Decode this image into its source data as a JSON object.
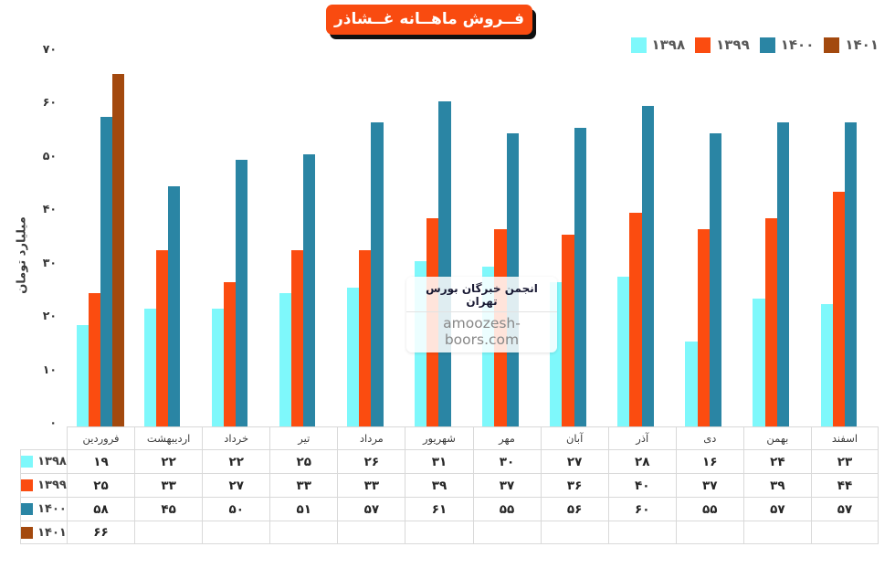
{
  "title": "فــروش ماهــانه غــشاذر",
  "watermark": {
    "line1": "انجمن خبرگان بورس تهران",
    "line2": "amoozesh-boors.com"
  },
  "y_axis": {
    "label": "میلیارد تومان",
    "ticks": [
      {
        "value": 70,
        "label": "۷۰"
      },
      {
        "value": 60,
        "label": "۶۰"
      },
      {
        "value": 50,
        "label": "۵۰"
      },
      {
        "value": 40,
        "label": "۴۰"
      },
      {
        "value": 30,
        "label": "۳۰"
      },
      {
        "value": 20,
        "label": "۲۰"
      },
      {
        "value": 10,
        "label": "۱۰"
      },
      {
        "value": 0,
        "label": "۰"
      }
    ]
  },
  "months": [
    "فروردین",
    "اردیبهشت",
    "خرداد",
    "تیر",
    "مرداد",
    "شهریور",
    "مهر",
    "آبان",
    "آذر",
    "دی",
    "بهمن",
    "اسفند"
  ],
  "series": [
    {
      "name": "۱۳۹۸",
      "color": "#7ef8fb",
      "values": [
        19,
        22,
        22,
        25,
        26,
        31,
        30,
        27,
        28,
        16,
        24,
        23
      ],
      "labels": [
        "۱۹",
        "۲۲",
        "۲۲",
        "۲۵",
        "۲۶",
        "۳۱",
        "۳۰",
        "۲۷",
        "۲۸",
        "۱۶",
        "۲۴",
        "۲۳"
      ]
    },
    {
      "name": "۱۳۹۹",
      "color": "#fb4c10",
      "values": [
        25,
        33,
        27,
        33,
        33,
        39,
        37,
        36,
        40,
        37,
        39,
        44
      ],
      "labels": [
        "۲۵",
        "۳۳",
        "۲۷",
        "۳۳",
        "۳۳",
        "۳۹",
        "۳۷",
        "۳۶",
        "۴۰",
        "۳۷",
        "۳۹",
        "۴۴"
      ]
    },
    {
      "name": "۱۴۰۰",
      "color": "#2a85a4",
      "values": [
        58,
        45,
        50,
        51,
        57,
        61,
        55,
        56,
        60,
        55,
        57,
        57
      ],
      "labels": [
        "۵۸",
        "۴۵",
        "۵۰",
        "۵۱",
        "۵۷",
        "۶۱",
        "۵۵",
        "۵۶",
        "۶۰",
        "۵۵",
        "۵۷",
        "۵۷"
      ]
    },
    {
      "name": "۱۴۰۱",
      "color": "#a3490e",
      "values": [
        66,
        null,
        null,
        null,
        null,
        null,
        null,
        null,
        null,
        null,
        null,
        null
      ],
      "labels": [
        "۶۶",
        "",
        "",
        "",
        "",
        "",
        "",
        "",
        "",
        "",
        "",
        ""
      ]
    }
  ],
  "colors": {
    "title_background": "#f94b10",
    "table_border": "#d9d9d9",
    "legend_text": "#595959"
  },
  "chart_data": {
    "type": "bar",
    "title": "فــروش ماهــانه غــشاذر (Monthly sales)",
    "categories": [
      "فروردین",
      "اردیبهشت",
      "خرداد",
      "تیر",
      "مرداد",
      "شهریور",
      "مهر",
      "آبان",
      "آذر",
      "دی",
      "بهمن",
      "اسفند"
    ],
    "series": [
      {
        "name": "۱۳۹۸",
        "values": [
          19,
          22,
          22,
          25,
          26,
          31,
          30,
          27,
          28,
          16,
          24,
          23
        ]
      },
      {
        "name": "۱۳۹۹",
        "values": [
          25,
          33,
          27,
          33,
          33,
          39,
          37,
          36,
          40,
          37,
          39,
          44
        ]
      },
      {
        "name": "۱۴۰۰",
        "values": [
          58,
          45,
          50,
          51,
          57,
          61,
          55,
          56,
          60,
          55,
          57,
          57
        ]
      },
      {
        "name": "۱۴۰۱",
        "values": [
          66,
          null,
          null,
          null,
          null,
          null,
          null,
          null,
          null,
          null,
          null,
          null
        ]
      }
    ],
    "xlabel": "",
    "ylabel": "میلیارد تومان",
    "ylim": [
      0,
      70
    ],
    "grid": false,
    "legend_position": "top-right",
    "data_table_below_chart": true
  }
}
